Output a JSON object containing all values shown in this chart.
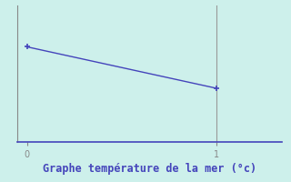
{
  "x": [
    0,
    1
  ],
  "y": [
    29.8,
    28.8
  ],
  "line_color": "#4444bb",
  "marker": "+",
  "marker_size": 5,
  "marker_color": "#4444bb",
  "background_color": "#cdf0eb",
  "left_spine_color": "#888888",
  "bottom_spine_color": "#4444bb",
  "xlabel": "Graphe température de la mer (°c)",
  "xlabel_color": "#4444bb",
  "xlabel_fontsize": 8.5,
  "xlim": [
    -0.05,
    1.35
  ],
  "ylim": [
    27.5,
    30.8
  ],
  "xticks": [
    0,
    1
  ],
  "line_width": 1.0,
  "vline_x": 1,
  "vline_color": "#999999"
}
